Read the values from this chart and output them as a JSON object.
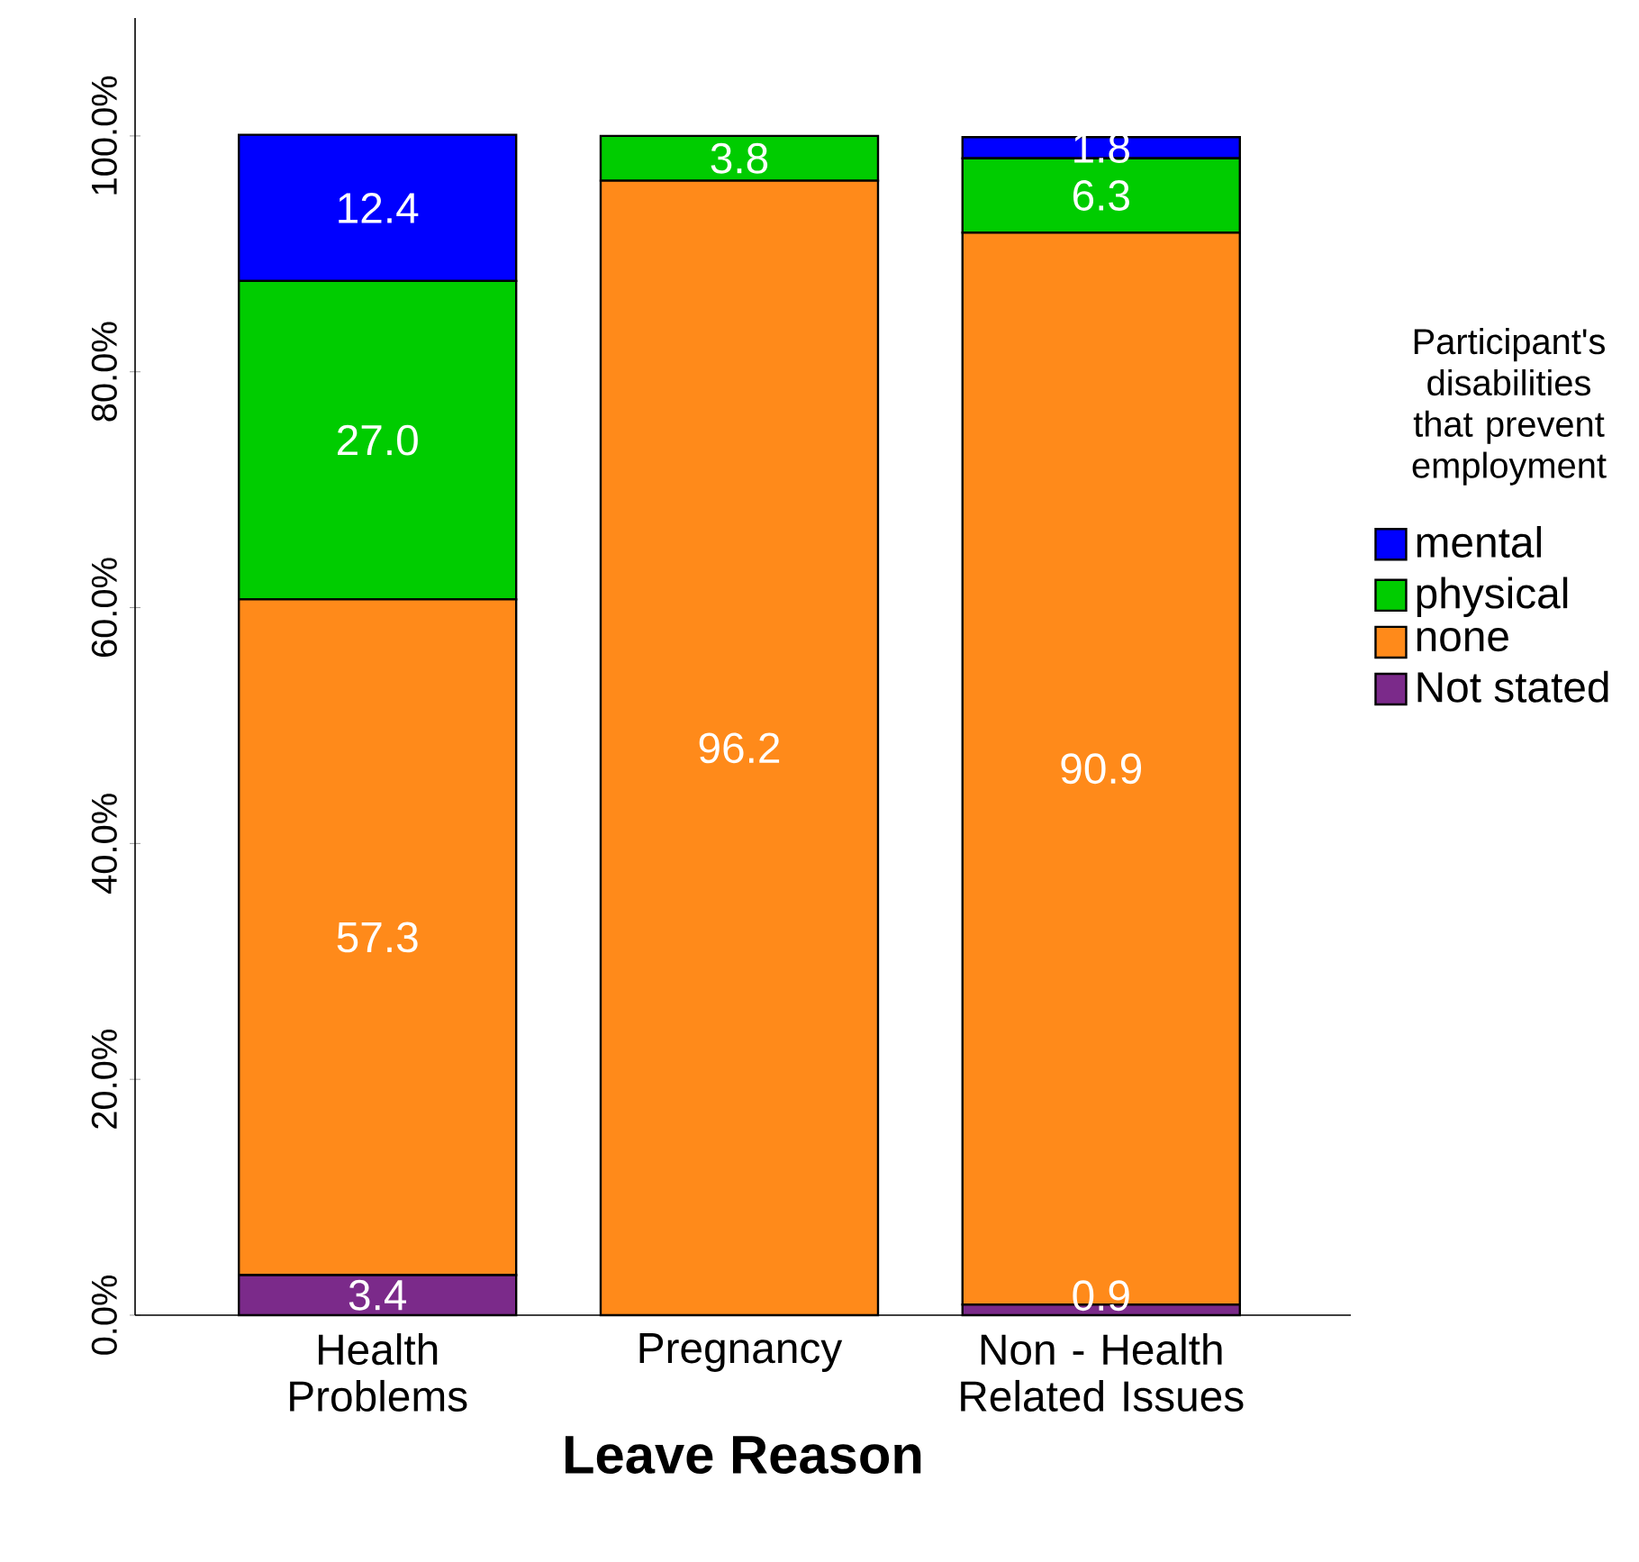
{
  "chart_data": {
    "type": "bar",
    "stacked": true,
    "xlabel": "Leave Reason",
    "legend_title": "Participant's disabilities that prevent employment",
    "legend": "right",
    "categories": [
      "Health Problems",
      "Pregnancy",
      "Non - Health Related Issues"
    ],
    "ylim": [
      0,
      110
    ],
    "yticks": [
      {
        "value": 0,
        "label": "0.0%"
      },
      {
        "value": 20,
        "label": "20.0%"
      },
      {
        "value": 40,
        "label": "40.0%"
      },
      {
        "value": 60,
        "label": "60.0%"
      },
      {
        "value": 80,
        "label": "80.0%"
      },
      {
        "value": 100,
        "label": "100.0%"
      }
    ],
    "series": [
      {
        "name": "Not stated",
        "color": "#7b2a8a",
        "values": [
          3.4,
          null,
          0.9
        ],
        "value_labels": [
          "3.4",
          null,
          "0.9"
        ]
      },
      {
        "name": "none",
        "color": "#ff8a1a",
        "values": [
          57.3,
          96.2,
          90.9
        ],
        "value_labels": [
          "57.3",
          "96.2",
          "90.9"
        ]
      },
      {
        "name": "physical",
        "color": "#00cc00",
        "values": [
          27.0,
          3.8,
          6.3
        ],
        "value_labels": [
          "27.0",
          "3.8",
          "6.3"
        ]
      },
      {
        "name": "mental",
        "color": "#0000ff",
        "values": [
          12.4,
          null,
          1.8
        ],
        "value_labels": [
          "12.4",
          null,
          "1.8"
        ]
      }
    ]
  }
}
